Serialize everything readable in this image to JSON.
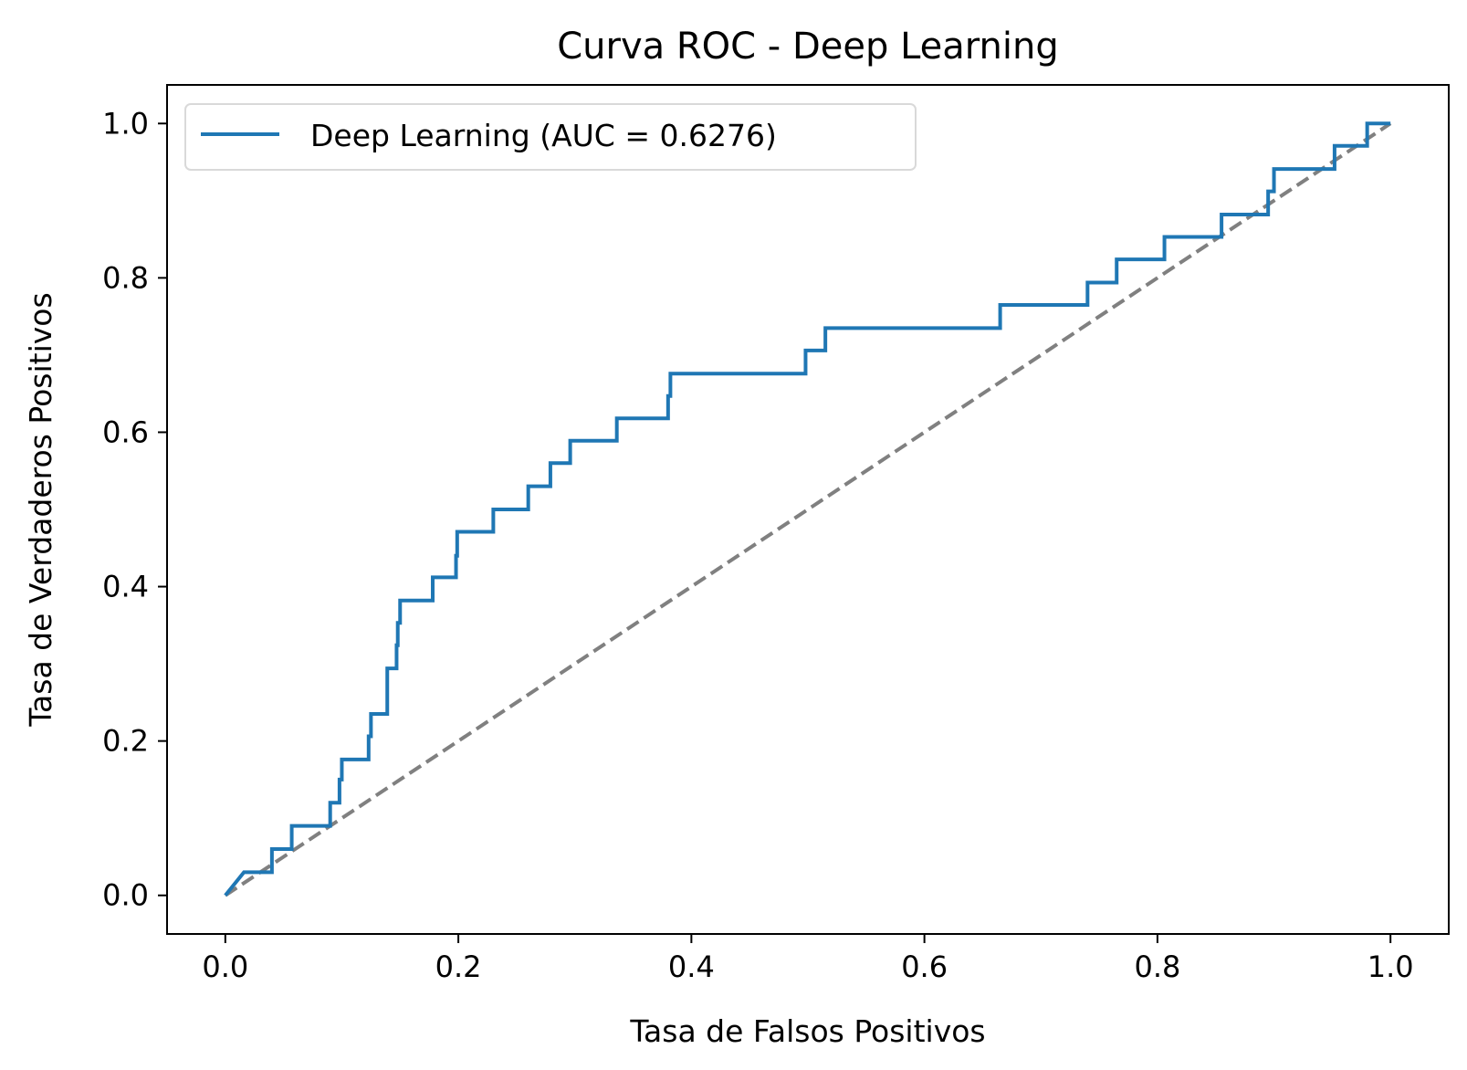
{
  "chart_data": {
    "type": "line",
    "title": "Curva ROC - Deep Learning",
    "xlabel": "Tasa de Falsos Positivos",
    "ylabel": "Tasa de Verdaderos Positivos",
    "xlim": [
      -0.05,
      1.05
    ],
    "ylim": [
      -0.05,
      1.05
    ],
    "xticks": [
      0.0,
      0.2,
      0.4,
      0.6,
      0.8,
      1.0
    ],
    "yticks": [
      0.0,
      0.2,
      0.4,
      0.6,
      0.8,
      1.0
    ],
    "xtick_labels": [
      "0.0",
      "0.2",
      "0.4",
      "0.6",
      "0.8",
      "1.0"
    ],
    "ytick_labels": [
      "0.0",
      "0.2",
      "0.4",
      "0.6",
      "0.8",
      "1.0"
    ],
    "grid": false,
    "legend_position": "top-left",
    "series": [
      {
        "name": "Deep Learning (AUC = 0.6276)",
        "color": "#1f77b4",
        "style": "solid",
        "x": [
          0.0,
          0.016,
          0.04,
          0.04,
          0.057,
          0.057,
          0.09,
          0.09,
          0.098,
          0.098,
          0.1,
          0.1,
          0.1,
          0.123,
          0.123,
          0.125,
          0.125,
          0.139,
          0.139,
          0.139,
          0.139,
          0.147,
          0.147,
          0.148,
          0.148,
          0.15,
          0.15,
          0.178,
          0.178,
          0.198,
          0.198,
          0.199,
          0.199,
          0.23,
          0.23,
          0.26,
          0.26,
          0.279,
          0.279,
          0.296,
          0.296,
          0.336,
          0.336,
          0.38,
          0.38,
          0.382,
          0.382,
          0.498,
          0.498,
          0.515,
          0.515,
          0.665,
          0.665,
          0.74,
          0.74,
          0.765,
          0.765,
          0.806,
          0.806,
          0.855,
          0.855,
          0.895,
          0.895,
          0.9,
          0.9,
          0.952,
          0.952,
          0.98,
          0.98,
          1.0
        ],
        "y": [
          0.0,
          0.03,
          0.03,
          0.06,
          0.06,
          0.09,
          0.09,
          0.12,
          0.12,
          0.15,
          0.15,
          0.16,
          0.176,
          0.176,
          0.206,
          0.206,
          0.235,
          0.235,
          0.265,
          0.275,
          0.294,
          0.294,
          0.324,
          0.324,
          0.353,
          0.353,
          0.382,
          0.382,
          0.412,
          0.412,
          0.44,
          0.44,
          0.471,
          0.471,
          0.5,
          0.5,
          0.53,
          0.53,
          0.56,
          0.56,
          0.589,
          0.589,
          0.618,
          0.618,
          0.647,
          0.647,
          0.676,
          0.676,
          0.706,
          0.706,
          0.735,
          0.735,
          0.765,
          0.765,
          0.794,
          0.794,
          0.824,
          0.824,
          0.853,
          0.853,
          0.882,
          0.882,
          0.912,
          0.912,
          0.941,
          0.941,
          0.971,
          0.971,
          1.0,
          1.0
        ]
      },
      {
        "name": "",
        "color": "#808080",
        "style": "dashed",
        "x": [
          0.0,
          1.0
        ],
        "y": [
          0.0,
          1.0
        ]
      }
    ]
  }
}
